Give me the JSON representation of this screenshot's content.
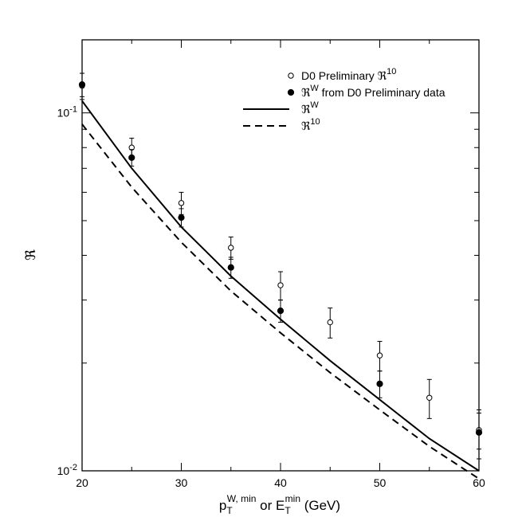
{
  "chart_data": {
    "type": "scatter",
    "title": "",
    "xlabel": {
      "base1": "p",
      "sub1": "T",
      "sup1": "W, min",
      "mid": " or ",
      "base2": "E",
      "sub2": "T",
      "sup2": "min",
      "unit": " (GeV)"
    },
    "ylabel": "ℜ",
    "xlim": [
      20,
      60
    ],
    "ylim": [
      0.01,
      0.16
    ],
    "yscale": "log",
    "x_ticks": [
      20,
      30,
      40,
      50,
      60
    ],
    "y_ticks": [
      {
        "value": 0.01,
        "base": "10",
        "exp": "-2"
      },
      {
        "value": 0.1,
        "base": "10",
        "exp": "-1"
      }
    ],
    "grid": false,
    "legend_position": "top-right",
    "series": [
      {
        "name": "D0 Preliminary ℜ",
        "name_sup": "10",
        "kind": "points",
        "marker": "open-circle",
        "x": [
          20,
          25,
          30,
          35,
          40,
          45,
          50,
          55,
          60
        ],
        "y": [
          0.119,
          0.08,
          0.056,
          0.042,
          0.033,
          0.026,
          0.021,
          0.016,
          0.013
        ],
        "err_low": [
          0.01,
          0.005,
          0.004,
          0.003,
          0.003,
          0.0025,
          0.002,
          0.002,
          0.0015
        ],
        "err_high": [
          0.01,
          0.005,
          0.004,
          0.003,
          0.003,
          0.0025,
          0.002,
          0.002,
          0.0015
        ]
      },
      {
        "name": "ℜ",
        "name_sup": "W",
        "name_suffix": " from D0 Preliminary data",
        "kind": "points",
        "marker": "filled-circle",
        "x": [
          20,
          25,
          30,
          35,
          40,
          50,
          60
        ],
        "y": [
          0.12,
          0.075,
          0.051,
          0.037,
          0.028,
          0.0175,
          0.0128
        ],
        "err_low": [
          0.009,
          0.004,
          0.003,
          0.0025,
          0.002,
          0.0015,
          0.002
        ],
        "err_high": [
          0.009,
          0.004,
          0.003,
          0.0025,
          0.002,
          0.0015,
          0.002
        ]
      },
      {
        "name": "ℜ",
        "name_sup": "W",
        "kind": "line",
        "dash": "solid",
        "x": [
          20,
          25,
          30,
          35,
          40,
          45,
          50,
          55,
          60
        ],
        "y": [
          0.108,
          0.07,
          0.048,
          0.035,
          0.0265,
          0.0203,
          0.0158,
          0.0123,
          0.01
        ]
      },
      {
        "name": "ℜ",
        "name_sup": "10",
        "kind": "line",
        "dash": "dashed",
        "x": [
          20,
          25,
          30,
          35,
          40,
          45,
          50,
          55,
          60
        ],
        "y": [
          0.093,
          0.062,
          0.0435,
          0.0318,
          0.0243,
          0.0188,
          0.0148,
          0.0117,
          0.0095
        ]
      }
    ]
  }
}
